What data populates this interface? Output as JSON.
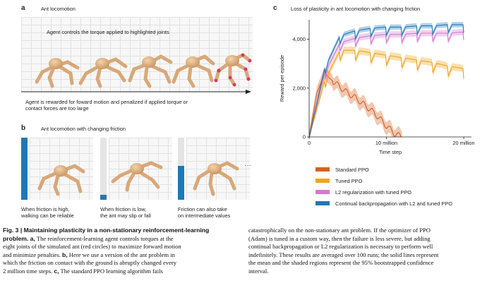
{
  "panel_a": {
    "label": "a",
    "title": "Ant locomotion",
    "top_text": "Agent controls the torque applied to highlighted joints",
    "bottom_text_1": "Agent is rewarded for foward motion and penalized if applied torque or",
    "bottom_text_2": "contact forces are too large"
  },
  "panel_b": {
    "label": "b",
    "title": "Ant locomotion with changing friction",
    "ellipsis": "···",
    "friction_levels": [
      1.0,
      0.08,
      0.55
    ],
    "captions": [
      [
        "When friction is high,",
        "walking can be reliable"
      ],
      [
        "When friction is low,",
        "the ant may slip or fall"
      ],
      [
        "Friction can also take",
        "on intermediate values"
      ]
    ]
  },
  "panel_c": {
    "label": "c"
  },
  "chart_data": {
    "type": "line",
    "title": "Loss of plasticity in ant locomotion with changing friction",
    "xlabel": "Time step",
    "ylabel": "Reward per episode",
    "xlim": [
      0,
      21000000
    ],
    "ylim": [
      0,
      4800
    ],
    "x_ticks": [
      0,
      10000000,
      20000000
    ],
    "x_tick_labels": [
      "0",
      "10  million",
      "20 million"
    ],
    "y_ticks": [
      0,
      2000,
      4000
    ],
    "y_tick_labels": [
      "0",
      "2,000",
      "4,000"
    ],
    "grid": false,
    "legend_position": "below",
    "series": [
      {
        "name": "Standard PPO",
        "color": "#d95f1c",
        "x": [
          0,
          1000000,
          2000000,
          3000000,
          4000000,
          5000000,
          6000000,
          7000000,
          8000000,
          9000000,
          10000000,
          11000000,
          12000000
        ],
        "values": [
          0,
          1800,
          2600,
          2300,
          2050,
          1800,
          1600,
          1350,
          1100,
          800,
          450,
          150,
          0
        ]
      },
      {
        "name": "Tuned PPO",
        "color": "#efa51c",
        "x": [
          0,
          2000000,
          4000000,
          6000000,
          8000000,
          10000000,
          12000000,
          14000000,
          16000000,
          18000000,
          20000000
        ],
        "values": [
          0,
          2300,
          3550,
          3550,
          3450,
          3350,
          3250,
          3150,
          3050,
          2900,
          2800
        ]
      },
      {
        "name": "L2 regularization with tuned PPO",
        "color": "#d27ad1",
        "x": [
          0,
          2000000,
          4000000,
          6000000,
          8000000,
          10000000,
          12000000,
          14000000,
          16000000,
          18000000,
          20000000
        ],
        "values": [
          0,
          2600,
          3850,
          4050,
          4150,
          4200,
          4200,
          4250,
          4250,
          4250,
          4300
        ]
      },
      {
        "name": "Continual backpropagation with L2 and tuned PPO",
        "color": "#1f78b4",
        "x": [
          0,
          2000000,
          4000000,
          6000000,
          8000000,
          10000000,
          12000000,
          14000000,
          16000000,
          18000000,
          20000000
        ],
        "values": [
          0,
          2800,
          4150,
          4350,
          4450,
          4500,
          4500,
          4550,
          4550,
          4600,
          4600
        ]
      }
    ]
  },
  "caption": {
    "left": [
      {
        "bold": "Fig. 3 | Maintaining plasticity in a non-stationary reinforcement-learning",
        "text": ""
      },
      {
        "bold": "problem. a,",
        "text": " The reinforcement-learning agent controls torques at the"
      },
      {
        "bold": "",
        "text": "eight joints of the simulated ant (red circles) to maximize forward motion"
      },
      {
        "bold": "",
        "text": "and minimize penalties. "
      },
      {
        "bold": "",
        "text": "which the friction on contact with the ground is abruptly changed every"
      },
      {
        "bold": "",
        "text": "2 million time steps. "
      }
    ],
    "left_inline": {
      "b_bold": "b,",
      "b_text": " Here we use a version of the ant problem in",
      "c_bold": "c,",
      "c_text": " The standard PPO learning algorithm fails"
    },
    "right": [
      "catastrophically on the non-stationary ant problem. If the optimizer of PPO",
      "(Adam) is tuned in a custom way, then the failure is less severe, but adding",
      "continual backpropagation or L2 regularization is necessary to perform well",
      "indefinitely. These results are averaged over 100 runs; the solid lines represent",
      "the mean and the shaded regions represent the 95% bootstrapped confidence",
      "interval."
    ]
  }
}
